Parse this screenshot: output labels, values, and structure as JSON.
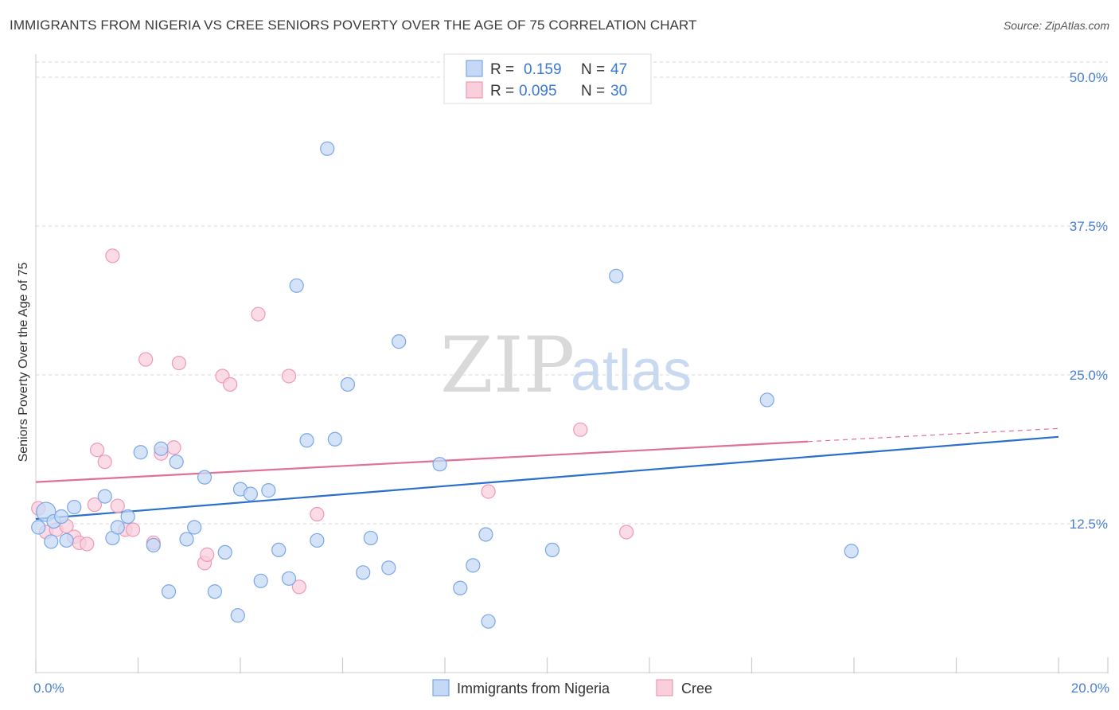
{
  "title": "IMMIGRANTS FROM NIGERIA VS CREE SENIORS POVERTY OVER THE AGE OF 75 CORRELATION CHART",
  "source": "Source: ZipAtlas.com",
  "watermark": {
    "zip": "ZIP",
    "atlas": "atlas"
  },
  "legend_stats": [
    {
      "r_label": "R =",
      "r_value": "0.159",
      "n_label": "N =",
      "n_value": "47"
    },
    {
      "r_label": "R =",
      "r_value": "0.095",
      "n_label": "N =",
      "n_value": "30"
    }
  ],
  "chart_data": {
    "type": "scatter",
    "title": "IMMIGRANTS FROM NIGERIA VS CREE SENIORS POVERTY OVER THE AGE OF 75 CORRELATION CHART",
    "xlabel": "",
    "ylabel": "Seniors Poverty Over the Age of 75",
    "xlim": [
      0,
      20
    ],
    "ylim": [
      0,
      50
    ],
    "x_tick_labels": [
      {
        "value": 0,
        "label": "0.0%"
      },
      {
        "value": 20,
        "label": "20.0%"
      }
    ],
    "y_tick_labels": [
      {
        "value": 12.5,
        "label": "12.5%"
      },
      {
        "value": 25,
        "label": "25.0%"
      },
      {
        "value": 37.5,
        "label": "37.5%"
      },
      {
        "value": 50,
        "label": "50.0%"
      }
    ],
    "grid": true,
    "series": [
      {
        "name": "Immigrants from Nigeria",
        "color": "#7aa7e6",
        "fill": "#c5d9f6",
        "trend_color": "#2b6fce",
        "R": 0.159,
        "N": 47,
        "trend": {
          "x": [
            0,
            20
          ],
          "y": [
            12.9,
            19.8
          ]
        },
        "points": [
          [
            0.05,
            12.2
          ],
          [
            0.2,
            13.5
          ],
          [
            0.35,
            12.7
          ],
          [
            0.5,
            13.1
          ],
          [
            0.6,
            11.1
          ],
          [
            0.75,
            13.9
          ],
          [
            1.35,
            14.8
          ],
          [
            1.5,
            11.3
          ],
          [
            1.6,
            12.2
          ],
          [
            1.8,
            13.1
          ],
          [
            2.05,
            18.5
          ],
          [
            2.3,
            10.7
          ],
          [
            2.45,
            18.8
          ],
          [
            2.6,
            6.8
          ],
          [
            2.75,
            17.7
          ],
          [
            2.95,
            11.2
          ],
          [
            3.1,
            12.2
          ],
          [
            3.3,
            16.4
          ],
          [
            3.5,
            6.8
          ],
          [
            3.7,
            10.1
          ],
          [
            3.95,
            4.8
          ],
          [
            4.0,
            15.4
          ],
          [
            4.2,
            15.0
          ],
          [
            4.4,
            7.7
          ],
          [
            4.55,
            15.3
          ],
          [
            4.75,
            10.3
          ],
          [
            4.95,
            7.9
          ],
          [
            5.1,
            32.5
          ],
          [
            5.3,
            19.5
          ],
          [
            5.5,
            11.1
          ],
          [
            5.7,
            44.0
          ],
          [
            5.85,
            19.6
          ],
          [
            6.1,
            24.2
          ],
          [
            6.4,
            8.4
          ],
          [
            6.55,
            11.3
          ],
          [
            6.9,
            8.8
          ],
          [
            7.1,
            27.8
          ],
          [
            7.9,
            17.5
          ],
          [
            8.3,
            7.1
          ],
          [
            8.55,
            9.0
          ],
          [
            8.8,
            11.6
          ],
          [
            8.85,
            4.3
          ],
          [
            10.1,
            10.3
          ],
          [
            11.35,
            33.3
          ],
          [
            14.3,
            22.9
          ],
          [
            15.95,
            10.2
          ],
          [
            0.3,
            11.0
          ]
        ]
      },
      {
        "name": "Cree",
        "color": "#ee9ab4",
        "fill": "#f9cfdc",
        "trend_color": "#e07097",
        "R": 0.095,
        "N": 30,
        "trend": {
          "x": [
            0,
            15.1
          ],
          "y": [
            16.0,
            19.4
          ]
        },
        "trend_dashed": {
          "x": [
            15.1,
            20
          ],
          "y": [
            19.4,
            20.5
          ]
        },
        "points": [
          [
            0.05,
            13.8
          ],
          [
            0.2,
            11.8
          ],
          [
            0.4,
            12.0
          ],
          [
            0.6,
            12.3
          ],
          [
            0.75,
            11.4
          ],
          [
            0.85,
            10.9
          ],
          [
            1.0,
            10.8
          ],
          [
            1.15,
            14.1
          ],
          [
            1.2,
            18.7
          ],
          [
            1.35,
            17.7
          ],
          [
            1.5,
            35.0
          ],
          [
            1.6,
            14.0
          ],
          [
            1.75,
            12.0
          ],
          [
            1.9,
            12.0
          ],
          [
            2.15,
            26.3
          ],
          [
            2.3,
            10.9
          ],
          [
            2.45,
            18.4
          ],
          [
            2.7,
            18.9
          ],
          [
            2.8,
            26.0
          ],
          [
            3.3,
            9.2
          ],
          [
            3.35,
            9.9
          ],
          [
            3.65,
            24.9
          ],
          [
            3.8,
            24.2
          ],
          [
            4.35,
            30.1
          ],
          [
            4.95,
            24.9
          ],
          [
            5.15,
            7.2
          ],
          [
            5.5,
            13.3
          ],
          [
            8.85,
            15.2
          ],
          [
            10.65,
            20.4
          ],
          [
            11.55,
            11.8
          ]
        ]
      }
    ]
  }
}
